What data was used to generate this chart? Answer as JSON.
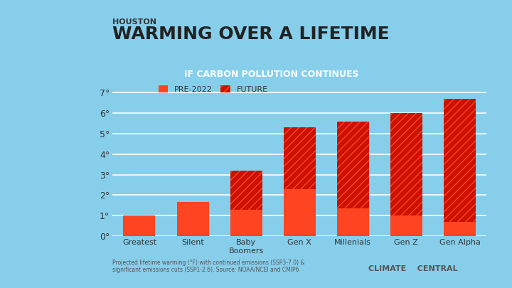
{
  "title_city": "HOUSTON",
  "title_main": "WARMING OVER A LIFETIME",
  "subtitle": "IF CARBON POLLUTION CONTINUES",
  "categories": [
    "Greatest",
    "Silent",
    "Baby\nBoomers",
    "Gen X",
    "Millenials",
    "Gen Z",
    "Gen Alpha"
  ],
  "pre2022_values": [
    1.0,
    1.65,
    1.3,
    2.3,
    1.35,
    1.0,
    0.7
  ],
  "future_values": [
    0.0,
    0.0,
    1.9,
    3.0,
    4.25,
    5.0,
    6.0
  ],
  "yticks": [
    0,
    1,
    2,
    3,
    4,
    5,
    6,
    7
  ],
  "ylim": [
    0,
    7.3
  ],
  "color_pre2022": "#FF4422",
  "color_future": "#CC1100",
  "hatch_pattern": "///",
  "subtitle_bg": "#CC1100",
  "subtitle_text_color": "#FFFFFF",
  "legend_label_pre2022": "PRE-2022",
  "legend_label_future": "FUTURE",
  "background_color": "#87CEEB",
  "axis_text_color": "#333333",
  "grid_color": "#FFFFFF",
  "footnote": "Projected lifetime warming (°F) with continued emissions (SSP3-7.0) &\nsignificant emissions cuts (SSP1-2.6). Source: NOAA/NCEI and CMIP6",
  "source_text": "CLIMATE    CENTRAL",
  "title_city_color": "#333333",
  "title_main_color": "#222222",
  "bar_width": 0.6
}
